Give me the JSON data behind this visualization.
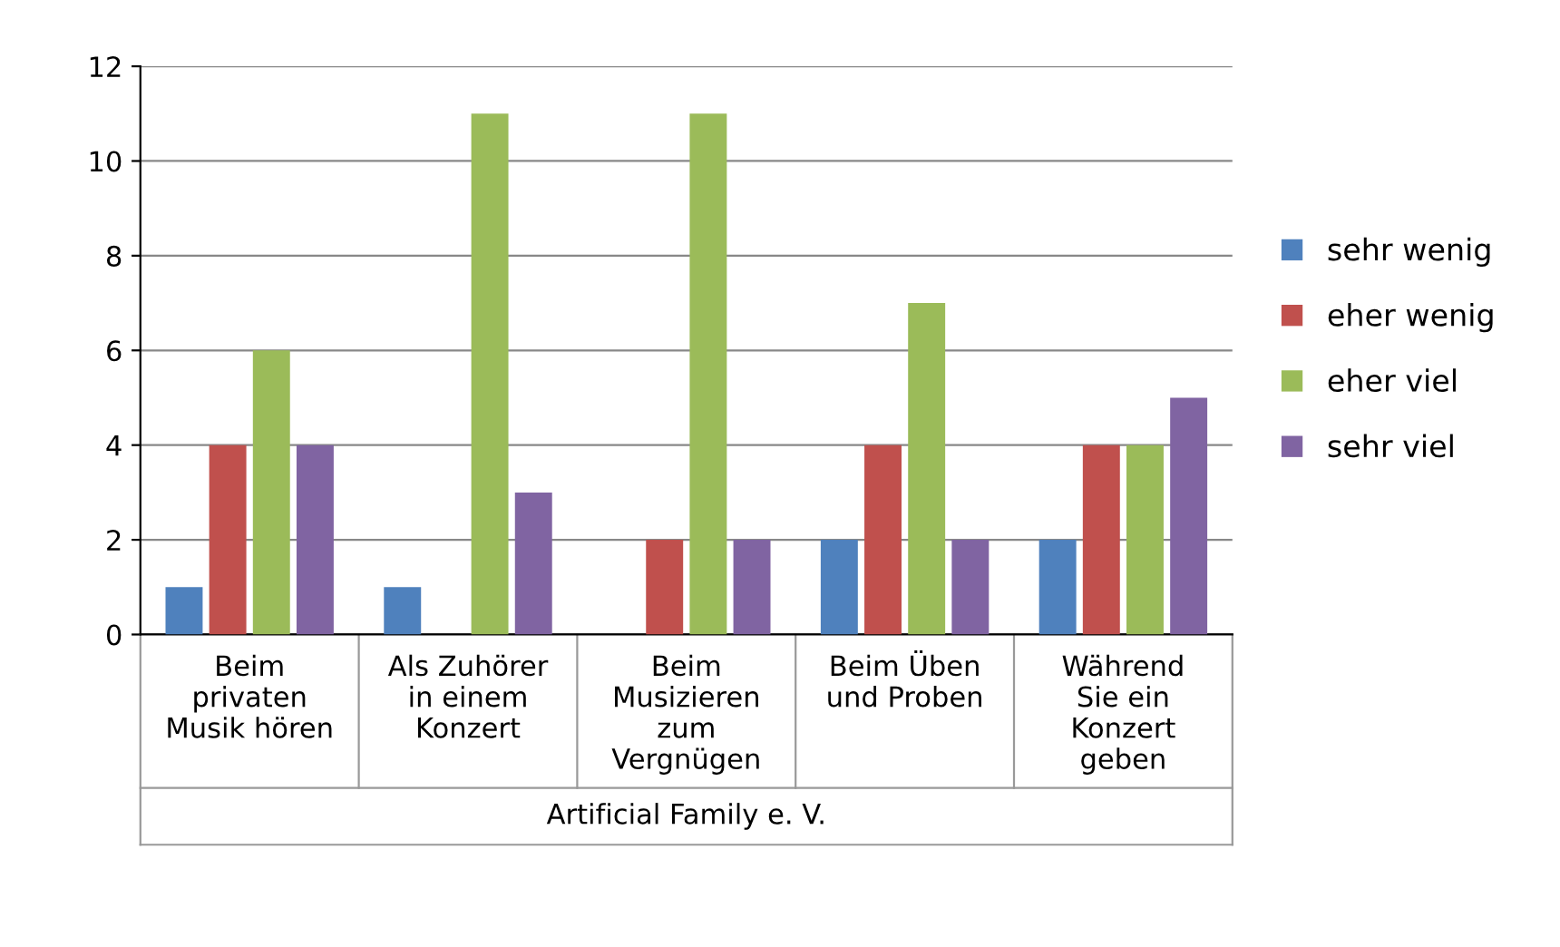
{
  "chart_data": {
    "type": "bar",
    "categories": [
      "Beim\nprivaten\nMusik hören",
      "Als Zuhörer\nin einem\nKonzert",
      "Beim\nMusizieren\nzum\nVergnügen",
      "Beim Üben\nund Proben",
      "Während\nSie ein\nKonzert\ngeben"
    ],
    "xlabel": "Artificial Family e. V.",
    "series": [
      {
        "name": "sehr wenig",
        "color": "#4f81bd",
        "values": [
          1,
          1,
          0,
          2,
          2
        ]
      },
      {
        "name": "eher wenig",
        "color": "#c0504d",
        "values": [
          4,
          0,
          2,
          4,
          4
        ]
      },
      {
        "name": "eher viel",
        "color": "#9bbb59",
        "values": [
          6,
          11,
          11,
          7,
          4
        ]
      },
      {
        "name": "sehr viel",
        "color": "#8064a2",
        "values": [
          4,
          3,
          2,
          2,
          5
        ]
      }
    ],
    "ylim": [
      0,
      12
    ],
    "yticks": [
      0,
      2,
      4,
      6,
      8,
      10,
      12
    ],
    "grid": "y",
    "legend": "right"
  }
}
